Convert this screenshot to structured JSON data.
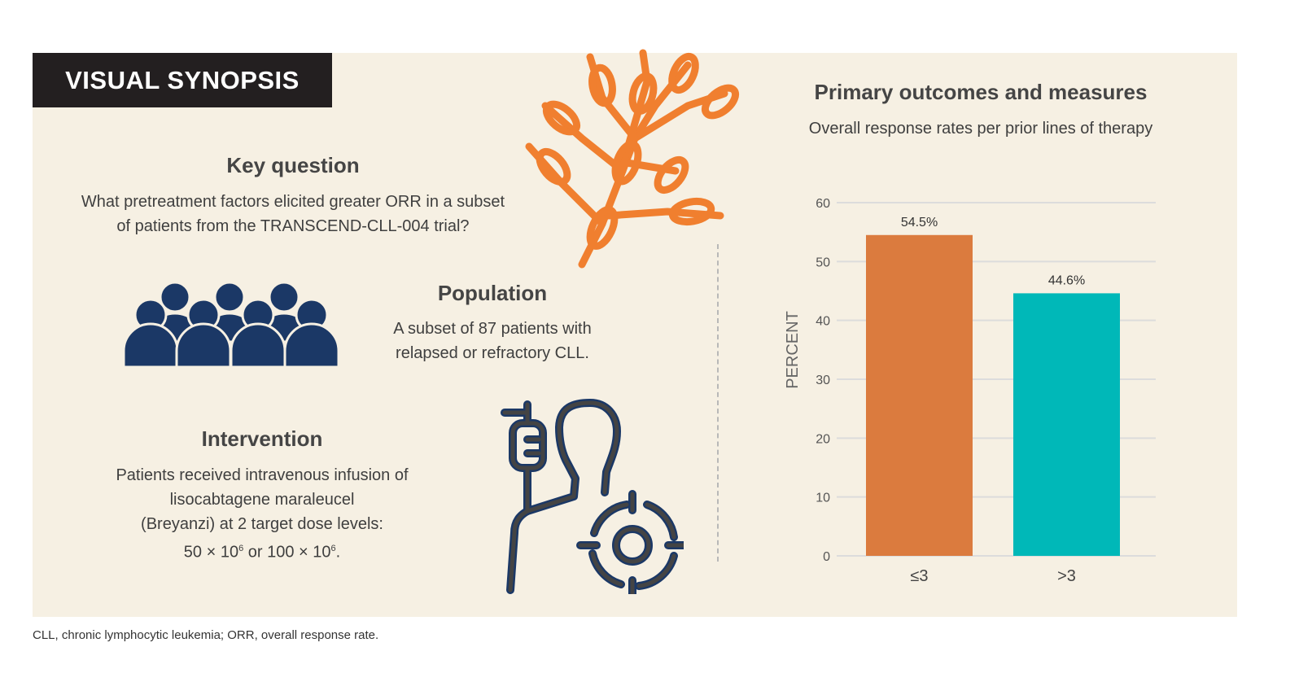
{
  "banner": "VISUAL SYNOPSIS",
  "key_question": {
    "heading": "Key question",
    "text_lines": [
      "What pretreatment factors elicited greater ORR in a subset",
      "of patients from the TRANSCEND-CLL-004 trial?"
    ]
  },
  "population": {
    "heading": "Population",
    "text_lines": [
      "A subset of 87 patients with",
      "relapsed or refractory CLL."
    ]
  },
  "intervention": {
    "heading": "Intervention",
    "text_lines": [
      "Patients received intravenous infusion of",
      "lisocabtagene maraleucel",
      "(Breyanzi) at 2 target dose levels:"
    ],
    "dose_a": "50 × 10",
    "dose_sup": "6",
    "dose_or": " or 100 × 10",
    "dose_end": "."
  },
  "outcomes": {
    "heading": "Primary outcomes and measures",
    "subtitle": "Overall response rates per prior lines of therapy"
  },
  "footnote": "CLL, chronic lymphocytic leukemia; ORR, overall response rate.",
  "icons": [
    "branch-illustration",
    "people-group-icon",
    "iv-patient-target-icon"
  ],
  "colors": {
    "panel": "#f6f0e3",
    "banner": "#231f20",
    "branch": "#f07f2f",
    "people": "#1b3866",
    "bar1": "#db7b3e",
    "bar2": "#00b8b8"
  },
  "chart_data": {
    "type": "bar",
    "categories": [
      "≤3",
      ">3"
    ],
    "values": [
      54.5,
      44.6
    ],
    "data_labels": [
      "54.5%",
      "44.6%"
    ],
    "ylabel": "PERCENT",
    "ylim": [
      0,
      60
    ],
    "yticks": [
      0,
      10,
      20,
      30,
      40,
      50,
      60
    ],
    "grid": true,
    "colors": [
      "#db7b3e",
      "#00b8b8"
    ]
  }
}
